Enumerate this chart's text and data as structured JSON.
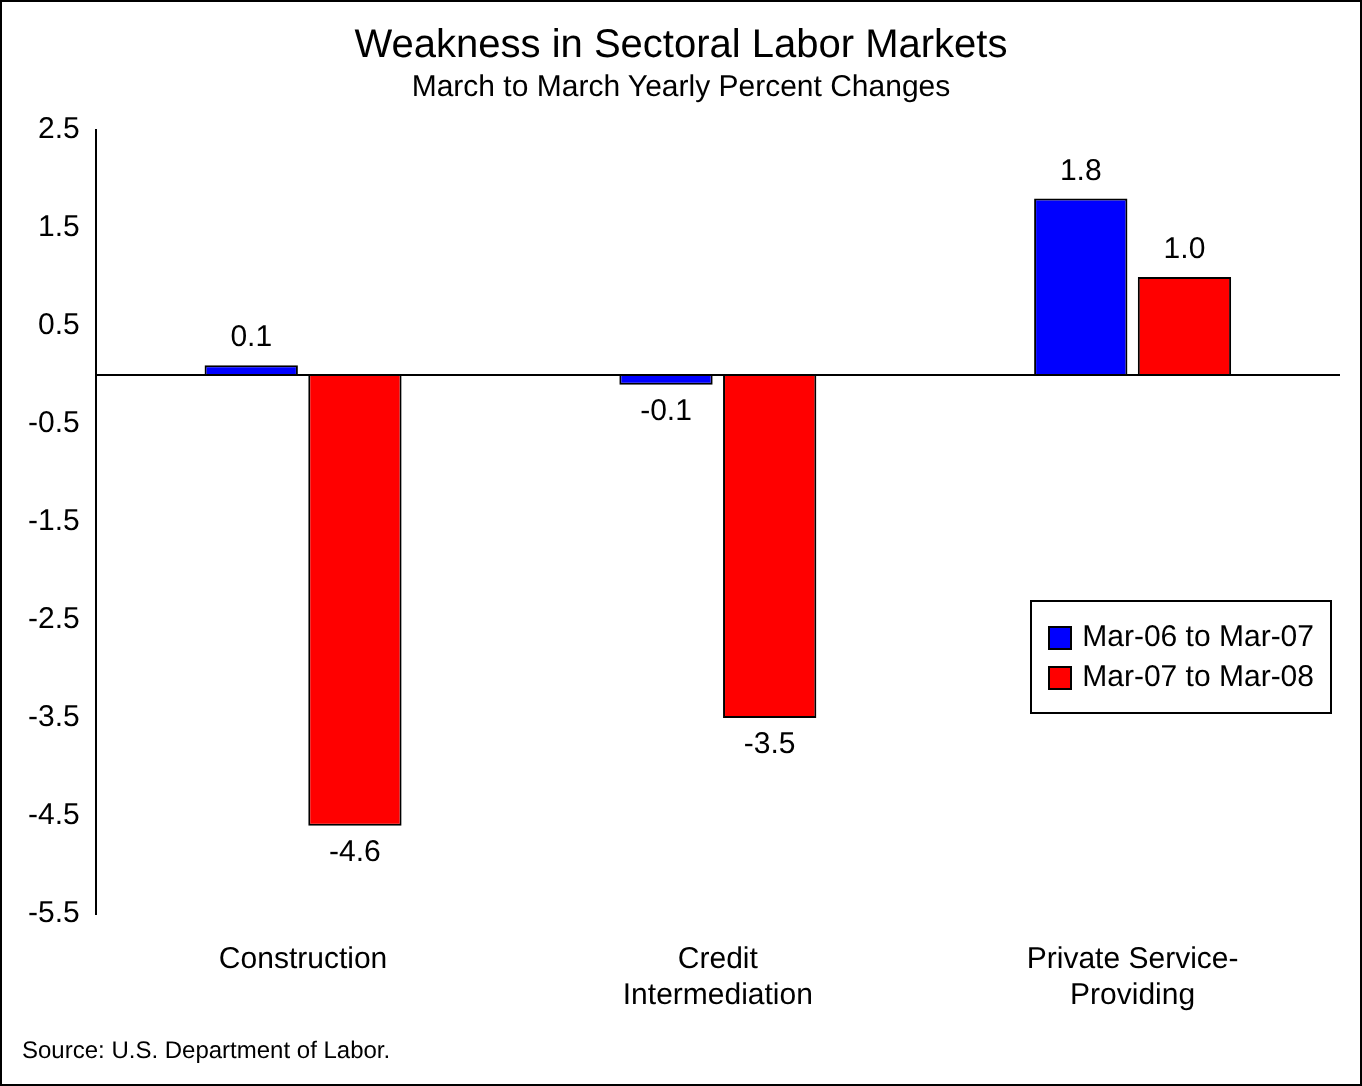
{
  "chart_data": {
    "type": "bar",
    "title": "Weakness in Sectoral Labor Markets",
    "subtitle": "March to March Yearly Percent Changes",
    "categories": [
      "Construction",
      "Credit Intermediation",
      "Private Service-Providing"
    ],
    "series": [
      {
        "name": "Mar-06 to Mar-07",
        "color": "#0000ff",
        "values": [
          0.1,
          -0.1,
          1.8
        ],
        "value_labels": [
          "0.1",
          "-0.1",
          "1.8"
        ]
      },
      {
        "name": "Mar-07 to Mar-08",
        "color": "#ff0000",
        "values": [
          -4.6,
          -3.5,
          1.0
        ],
        "value_labels": [
          "-4.6",
          "-3.5",
          "1.0"
        ]
      }
    ],
    "ylim": [
      -5.5,
      2.5
    ],
    "yticks": [
      -5.5,
      -4.5,
      -3.5,
      -2.5,
      -1.5,
      -0.5,
      0.5,
      1.5,
      2.5
    ],
    "grid": false,
    "legend": "right",
    "annotations": [
      "Source: U.S. Department of Labor."
    ]
  }
}
